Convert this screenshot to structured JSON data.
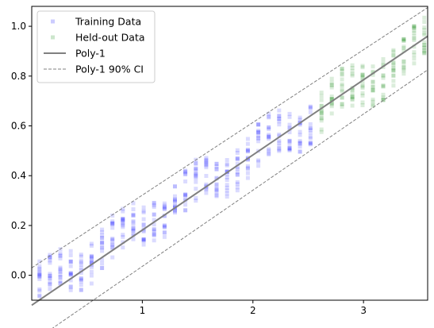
{
  "chart_data": {
    "type": "scatter",
    "title": "",
    "xlabel": "",
    "ylabel": "",
    "xlim": [
      0.0,
      3.58
    ],
    "ylim": [
      -0.1,
      1.08
    ],
    "x_ticks": [
      {
        "value": 1,
        "label": "1"
      },
      {
        "value": 2,
        "label": "2"
      },
      {
        "value": 3,
        "label": "3"
      }
    ],
    "y_ticks": [
      {
        "value": 0.0,
        "label": "0.0"
      },
      {
        "value": 0.2,
        "label": "0.2"
      },
      {
        "value": 0.4,
        "label": "0.4"
      },
      {
        "value": 0.6,
        "label": "0.6"
      },
      {
        "value": 0.8,
        "label": "0.8"
      },
      {
        "value": 1.0,
        "label": "1.0"
      }
    ],
    "grid": false,
    "legend_position": "upper-left",
    "series": [
      {
        "name": "Training Data",
        "kind": "scatter",
        "color": "#0000ff",
        "x_range": [
          0.07,
          2.52
        ],
        "columns": 27,
        "points_per_column": 15,
        "description_model": "y ≈ 0.28·x − 0.07 + periodic wiggle"
      },
      {
        "name": "Held-out Data",
        "kind": "scatter",
        "color": "#008000",
        "x_range": [
          2.62,
          3.55
        ],
        "columns": 11,
        "points_per_column": 15
      },
      {
        "name": "Poly-1",
        "kind": "line",
        "color": "#808080",
        "x": [
          0.0,
          3.58
        ],
        "y": [
          -0.12,
          0.96
        ]
      },
      {
        "name": "Poly-1 90% CI",
        "kind": "dashed-line",
        "color": "#808080",
        "upper": {
          "x": [
            0.0,
            3.58
          ],
          "y": [
            0.03,
            1.075
          ]
        },
        "lower": {
          "x": [
            0.0,
            3.58
          ],
          "y": [
            -0.27,
            0.825
          ]
        }
      }
    ]
  }
}
